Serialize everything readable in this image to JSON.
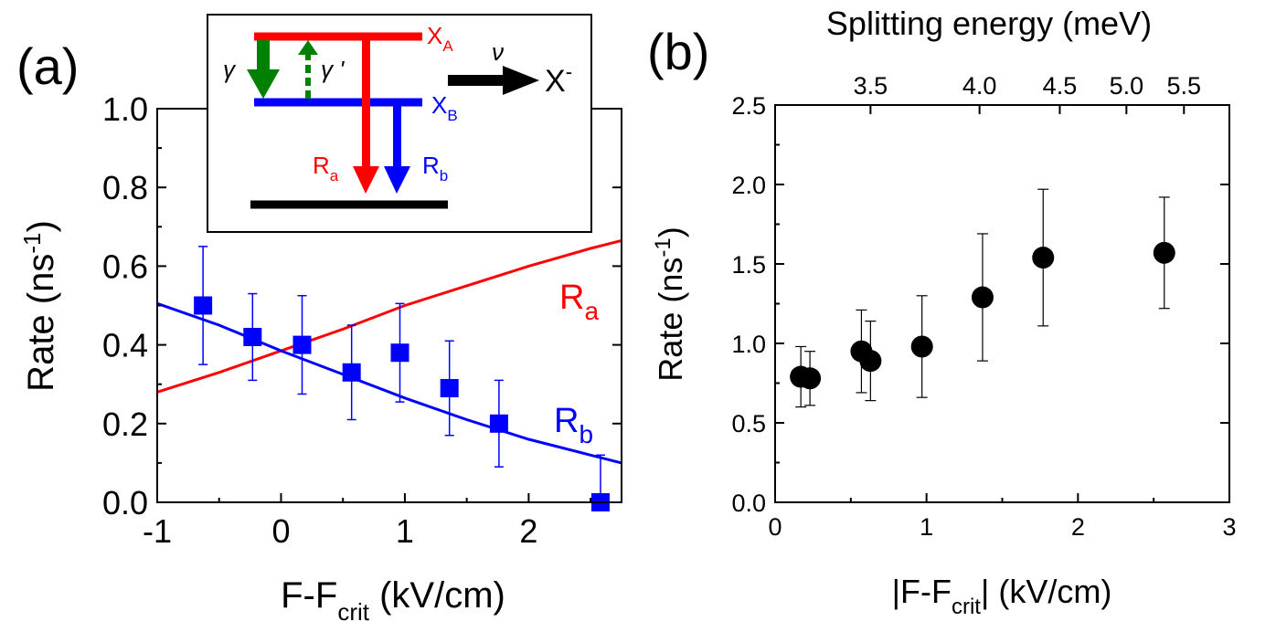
{
  "chart_data": [
    {
      "panel": "(a)",
      "type": "scatter",
      "xlabel": "F-F",
      "xlabel_sub": "crit",
      "xlabel_units": " (kV/cm)",
      "ylabel": "Rate (ns",
      "ylabel_sup": "-1",
      "ylabel_close": ")",
      "xlim": [
        -1,
        2.75
      ],
      "ylim": [
        0,
        1.0
      ],
      "xticks": [
        -1,
        0,
        1,
        2
      ],
      "yticks": [
        "0.0",
        "0.2",
        "0.4",
        "0.6",
        "0.8",
        "1.0"
      ],
      "series": [
        {
          "kind": "points",
          "color": "#0000ff",
          "marker": "square",
          "x": [
            -0.63,
            -0.23,
            0.17,
            0.57,
            0.96,
            1.36,
            1.76,
            2.58
          ],
          "y": [
            0.5,
            0.42,
            0.4,
            0.33,
            0.38,
            0.29,
            0.2,
            0.0
          ],
          "err": [
            0.15,
            0.11,
            0.125,
            0.12,
            0.125,
            0.12,
            0.11,
            0.12
          ]
        },
        {
          "kind": "line",
          "name": "R",
          "name_sub": "a",
          "color": "#ff0000",
          "x": [
            -1.0,
            -0.5,
            0.0,
            0.5,
            1.0,
            1.5,
            2.0,
            2.5,
            2.75
          ],
          "y": [
            0.28,
            0.33,
            0.385,
            0.44,
            0.5,
            0.55,
            0.6,
            0.645,
            0.665
          ]
        },
        {
          "kind": "line",
          "name": "R",
          "name_sub": "b",
          "color": "#0000ff",
          "x": [
            -1.0,
            -0.5,
            0.0,
            0.5,
            1.0,
            1.5,
            2.0,
            2.5,
            2.75
          ],
          "y": [
            0.505,
            0.45,
            0.385,
            0.325,
            0.265,
            0.21,
            0.16,
            0.12,
            0.1
          ]
        }
      ],
      "inset": {
        "level_a": "X",
        "level_a_sub": "A",
        "level_b": "X",
        "level_b_sub": "B",
        "gamma": "γ",
        "gamma_prime": "γ '",
        "nu": "ν",
        "trion": "X",
        "trion_sup": "-",
        "rate_a": "R",
        "rate_a_sub": "a",
        "rate_b": "R",
        "rate_b_sub": "b",
        "colors": {
          "red": "#ff0000",
          "blue": "#0000ff",
          "green": "#008000",
          "black": "#000000"
        }
      }
    },
    {
      "panel": "(b)",
      "type": "scatter",
      "xlabel_prefix": "|F-F",
      "xlabel_sub": "crit",
      "xlabel_units": "| (kV/cm)",
      "ylabel": "Rate (ns",
      "ylabel_sup": "-1",
      "ylabel_close": ")",
      "top_axis_label": "Splitting energy (meV)",
      "top_ticks": [
        {
          "label": "3.5",
          "x": 0.63
        },
        {
          "label": "4.0",
          "x": 1.35
        },
        {
          "label": "4.5",
          "x": 1.88
        },
        {
          "label": "5.0",
          "x": 2.32
        },
        {
          "label": "5.5",
          "x": 2.7
        }
      ],
      "xlim": [
        0,
        3
      ],
      "ylim": [
        0,
        2.5
      ],
      "xticks": [
        "0",
        "1",
        "2",
        "3"
      ],
      "yticks": [
        "0.0",
        "0.5",
        "1.0",
        "1.5",
        "2.0",
        "2.5"
      ],
      "series": [
        {
          "kind": "points",
          "color": "#000000",
          "marker": "circle",
          "x": [
            0.17,
            0.23,
            0.57,
            0.63,
            0.97,
            1.37,
            1.77,
            2.57
          ],
          "y": [
            0.79,
            0.78,
            0.95,
            0.89,
            0.98,
            1.29,
            1.54,
            1.57
          ],
          "err": [
            0.19,
            0.17,
            0.26,
            0.25,
            0.32,
            0.4,
            0.43,
            0.35
          ]
        }
      ]
    }
  ]
}
